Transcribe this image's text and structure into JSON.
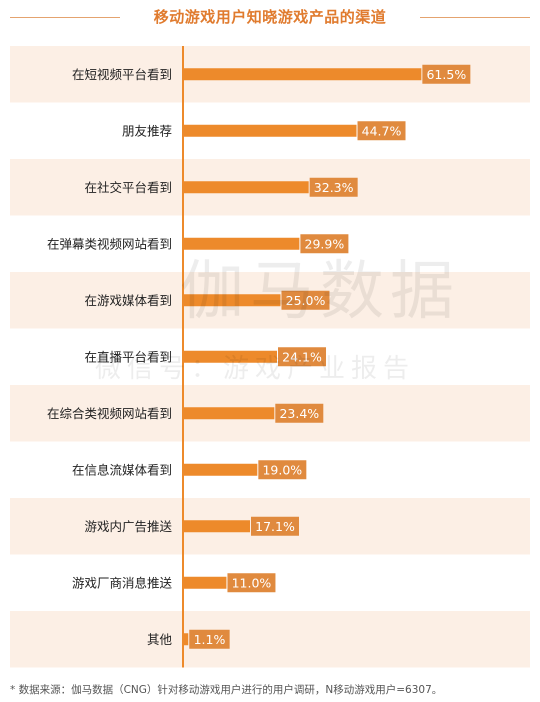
{
  "title": "移动游戏用户知晓游戏产品的渠道",
  "watermark": {
    "main": "伽马数据",
    "sub": "微信号：游戏产业报告"
  },
  "footnote": "* 数据来源：伽马数据（CNG）针对移动游戏用户进行的用户调研，N移动游戏用户=6307。",
  "colors": {
    "bar": "#ed8a2b",
    "label_bg": "#e08a3e",
    "band": "#fcefe5",
    "axis": "#ed8a2b",
    "title": "#e07b2e"
  },
  "chart_data": {
    "type": "bar",
    "orientation": "horizontal",
    "title": "移动游戏用户知晓游戏产品的渠道",
    "categories": [
      "在短视频平台看到",
      "朋友推荐",
      "在社交平台看到",
      "在弹幕类视频网站看到",
      "在游戏媒体看到",
      "在直播平台看到",
      "在综合类视频网站看到",
      "在信息流媒体看到",
      "游戏内广告推送",
      "游戏厂商消息推送",
      "其他"
    ],
    "values": [
      61.5,
      44.7,
      32.3,
      29.9,
      25.0,
      24.1,
      23.4,
      19.0,
      17.1,
      11.0,
      1.1
    ],
    "value_labels": [
      "61.5%",
      "44.7%",
      "32.3%",
      "29.9%",
      "25.0%",
      "24.1%",
      "23.4%",
      "19.0%",
      "17.1%",
      "11.0%",
      "1.1%"
    ],
    "xlim": [
      0,
      64
    ],
    "grid": false,
    "legend": "none"
  }
}
